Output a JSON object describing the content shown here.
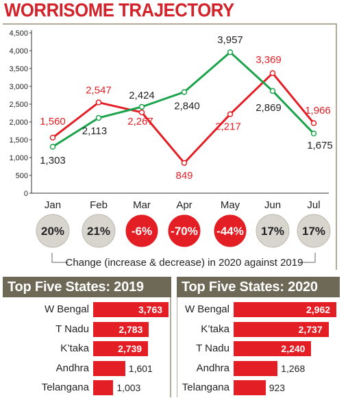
{
  "title": "WORRISOME TRAJECTORY",
  "colors": {
    "title": "#d2232a",
    "series_2020": "#e31e24",
    "series_2019": "#1aa34a",
    "header_bg": "#6e6956",
    "bar": "#e31e24",
    "badge_positive": "#d8d5cf",
    "badge_negative": "#e31e24"
  },
  "chart_data": [
    {
      "type": "line",
      "title": "WORRISOME TRAJECTORY",
      "categories": [
        "Jan",
        "Feb",
        "Mar",
        "Apr",
        "May",
        "Jun",
        "Jul"
      ],
      "series": [
        {
          "values": [
            1560,
            2547,
            2267,
            849,
            2217,
            3369,
            1966
          ],
          "color": "#e31e24"
        },
        {
          "values": [
            1303,
            2113,
            2424,
            2840,
            3957,
            2869,
            1675
          ],
          "color": "#1aa34a"
        }
      ],
      "ylim": [
        0,
        4500
      ],
      "yticks": [
        "0",
        "500",
        "1,000",
        "1,500",
        "2,000",
        "2,500",
        "3,000",
        "3,500",
        "4,000",
        "4,500"
      ],
      "point_labels": [
        [
          "1,560",
          "2,547",
          "2,267",
          "849",
          "2,217",
          "3,369",
          "1,966"
        ],
        [
          "1,303",
          "2,113",
          "2,424",
          "2,840",
          "3,957",
          "2,869",
          "1,675"
        ]
      ],
      "change_badges": [
        {
          "text": "20%",
          "negative": false
        },
        {
          "text": "21%",
          "negative": false
        },
        {
          "text": "-6%",
          "negative": true
        },
        {
          "text": "-70%",
          "negative": true
        },
        {
          "text": "-44%",
          "negative": true
        },
        {
          "text": "17%",
          "negative": false
        },
        {
          "text": "17%",
          "negative": false
        }
      ],
      "annotation": "Change (increase & decrease) in 2020 against 2019",
      "grid": false
    },
    {
      "type": "bar",
      "title": "Top Five States: 2019",
      "categories": [
        "W Bengal",
        "T Nadu",
        "K’taka",
        "Andhra",
        "Telangana"
      ],
      "values": [
        3763,
        2783,
        2739,
        1601,
        1003
      ],
      "value_labels": [
        "3,763",
        "2,783",
        "2,739",
        "1,601",
        "1,003"
      ]
    },
    {
      "type": "bar",
      "title": "Top Five States: 2020",
      "categories": [
        "W Bengal",
        "K’taka",
        "T Nadu",
        "Andhra",
        "Telangana"
      ],
      "values": [
        2962,
        2737,
        2240,
        1268,
        923
      ],
      "value_labels": [
        "2,962",
        "2,737",
        "2,240",
        "1,268",
        "923"
      ]
    }
  ]
}
